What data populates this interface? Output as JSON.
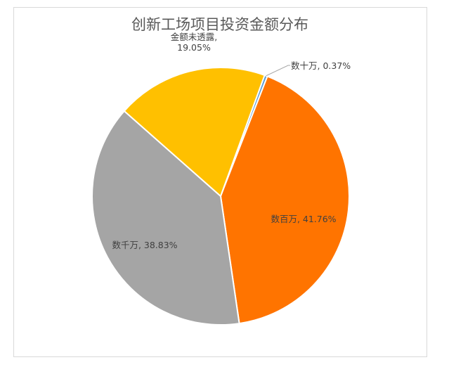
{
  "chart_data": {
    "type": "pie",
    "title": "创新工场项目投资金额分布",
    "slices": [
      {
        "label": "数十万",
        "percent": 0.37,
        "value_label": "0.37%",
        "color": "#5B9BD5"
      },
      {
        "label": "数百万",
        "percent": 41.76,
        "value_label": "41.76%",
        "color": "#FF7400"
      },
      {
        "label": "数千万",
        "percent": 38.83,
        "value_label": "38.83%",
        "color": "#A5A5A5"
      },
      {
        "label": "金额未透露,",
        "percent": 19.05,
        "value_label": "19.05%",
        "color": "#FFC000"
      }
    ],
    "legend": "none",
    "data_labels": "category-and-percent"
  }
}
